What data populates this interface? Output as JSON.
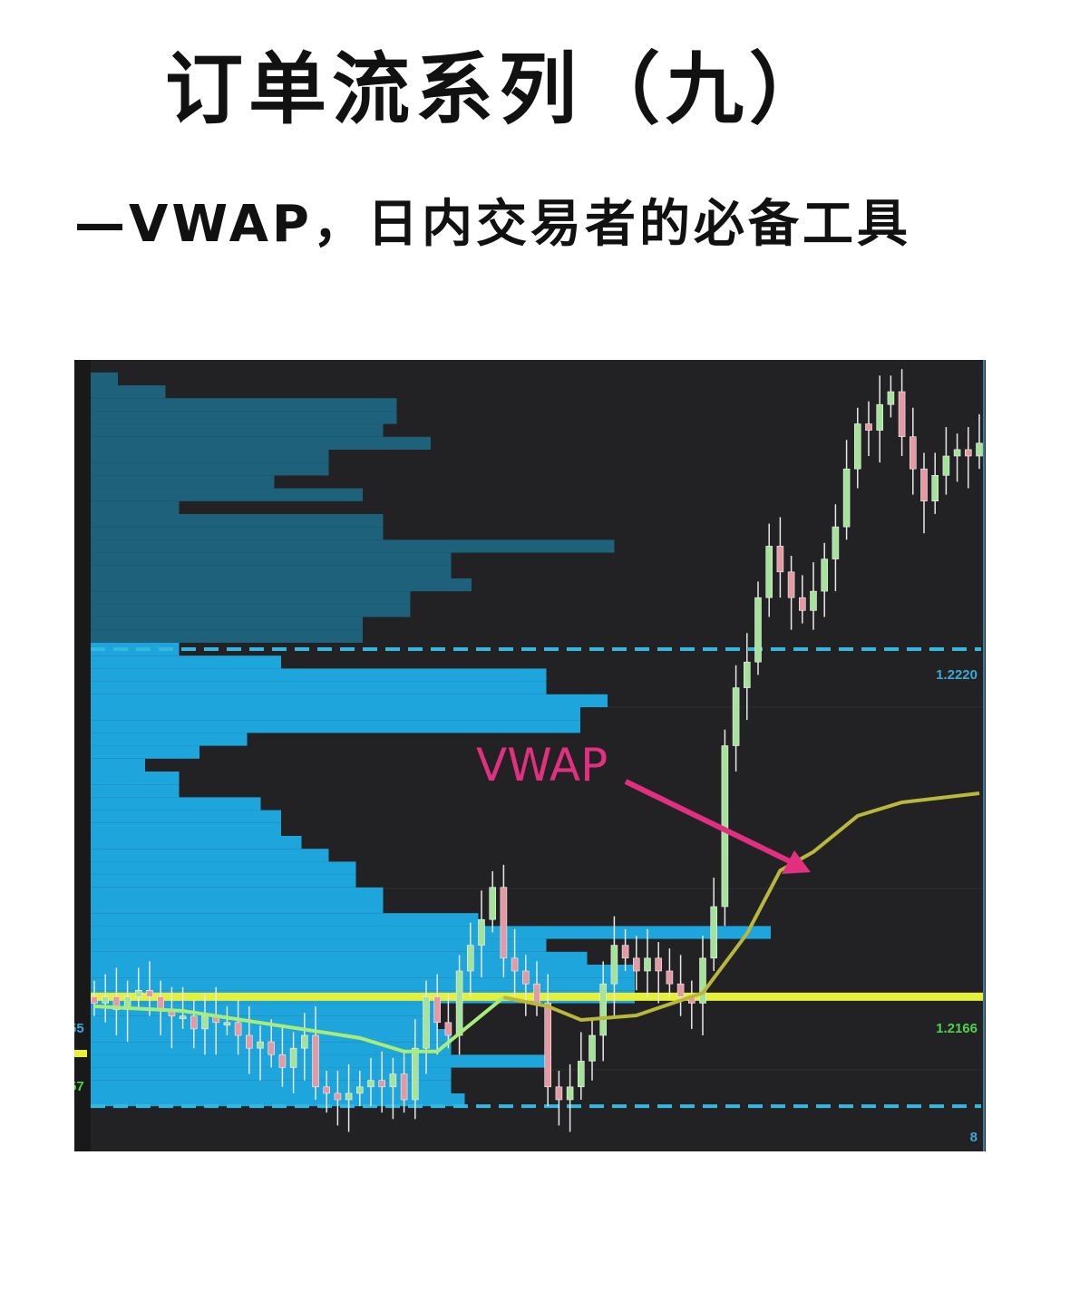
{
  "title": "订单流系列（九）",
  "subtitle": "—VWAP，日内交易者的必备工具",
  "chart_data": {
    "type": "candlestick",
    "title": "",
    "ylim": [
      1.2142,
      1.22645
    ],
    "x": "bar index",
    "closes": [
      1.2165,
      1.2166,
      1.2164,
      1.2166,
      1.2167,
      1.2166,
      1.2164,
      1.2163,
      1.2163,
      1.2161,
      1.2163,
      1.2162,
      1.2162,
      1.216,
      1.2158,
      1.2159,
      1.2157,
      1.2155,
      1.2158,
      1.216,
      1.2152,
      1.2151,
      1.215,
      1.2151,
      1.2152,
      1.2153,
      1.2152,
      1.2154,
      1.215,
      1.2158,
      1.2166,
      1.2162,
      1.216,
      1.217,
      1.2174,
      1.2178,
      1.2183,
      1.2172,
      1.217,
      1.2168,
      1.2165,
      1.2152,
      1.215,
      1.2152,
      1.2156,
      1.216,
      1.2168,
      1.2174,
      1.2172,
      1.217,
      1.2172,
      1.217,
      1.2168,
      1.2166,
      1.2165,
      1.2172,
      1.218,
      1.2205,
      1.2214,
      1.2218,
      1.2228,
      1.2236,
      1.2232,
      1.2228,
      1.2226,
      1.2229,
      1.2234,
      1.2239,
      1.2248,
      1.2255,
      1.2254,
      1.2258,
      1.226,
      1.2253,
      1.2248,
      1.2243,
      1.2247,
      1.225,
      1.2251,
      1.225,
      1.2252
    ],
    "vwap": [
      [
        0,
        1.21645
      ],
      [
        8,
        1.21638
      ],
      [
        16,
        1.21617
      ],
      [
        24,
        1.21596
      ],
      [
        28,
        1.21575
      ],
      [
        31,
        1.21575
      ],
      [
        34,
        1.21617
      ],
      [
        37,
        1.21659
      ],
      [
        41,
        1.21645
      ],
      [
        44,
        1.21624
      ],
      [
        49,
        1.21631
      ],
      [
        55,
        1.21666
      ],
      [
        59,
        1.21758
      ],
      [
        62,
        1.21856
      ],
      [
        65,
        1.21885
      ],
      [
        69,
        1.21941
      ],
      [
        73,
        1.21962
      ],
      [
        80,
        1.21976
      ]
    ],
    "volume_profile": {
      "prices": [
        1.2262,
        1.226,
        1.2258,
        1.2256,
        1.2254,
        1.2252,
        1.225,
        1.2248,
        1.2246,
        1.2244,
        1.2242,
        1.224,
        1.2238,
        1.2236,
        1.2234,
        1.2232,
        1.223,
        1.2228,
        1.2226,
        1.2224,
        1.2222,
        1.222,
        1.2218,
        1.2216,
        1.2214,
        1.2212,
        1.221,
        1.2208,
        1.2206,
        1.2204,
        1.2202,
        1.22,
        1.2198,
        1.2196,
        1.2194,
        1.2192,
        1.219,
        1.2188,
        1.2186,
        1.2184,
        1.2182,
        1.218,
        1.2178,
        1.2176,
        1.2174,
        1.2172,
        1.217,
        1.2168,
        1.2166,
        1.2164,
        1.2162,
        1.216,
        1.2158,
        1.2156,
        1.2154,
        1.2152,
        1.215
      ],
      "relative_volume": [
        4,
        11,
        45,
        45,
        43,
        50,
        35,
        35,
        27,
        40,
        13,
        43,
        43,
        77,
        53,
        53,
        56,
        47,
        47,
        40,
        40,
        13,
        28,
        67,
        67,
        76,
        72,
        72,
        23,
        16,
        8,
        13,
        13,
        25,
        28,
        28,
        31,
        35,
        39,
        39,
        43,
        43,
        57,
        100,
        67,
        73,
        80,
        80,
        80,
        51,
        51,
        53,
        53,
        67,
        53,
        53,
        55
      ],
      "value_area_high": 1.222,
      "value_area_low": 1.2149
    },
    "levels": [
      {
        "price": 1.222,
        "style": "dashed",
        "color": "#35b8e0",
        "label": "1.2220"
      },
      {
        "price": 1.2166,
        "style": "solid",
        "color": "#e6ef3a",
        "label": "1.2166"
      },
      {
        "price": 1.2149,
        "style": "dashed",
        "color": "#35b8e0",
        "label": "8"
      }
    ],
    "left_partial_labels": [
      "55",
      "57"
    ],
    "annotation": {
      "text": "VWAP",
      "color": "#e0307f",
      "points_to": "vwap-line"
    },
    "colors": {
      "background": "#222224",
      "profile_upper": "#1d6580",
      "profile_lower": "#1ea5dc",
      "up_candle": "#a6e39a",
      "down_candle": "#e49aa2",
      "vwap_lower": "#a8ec7a",
      "vwap_upper": "#b9b83a"
    }
  }
}
